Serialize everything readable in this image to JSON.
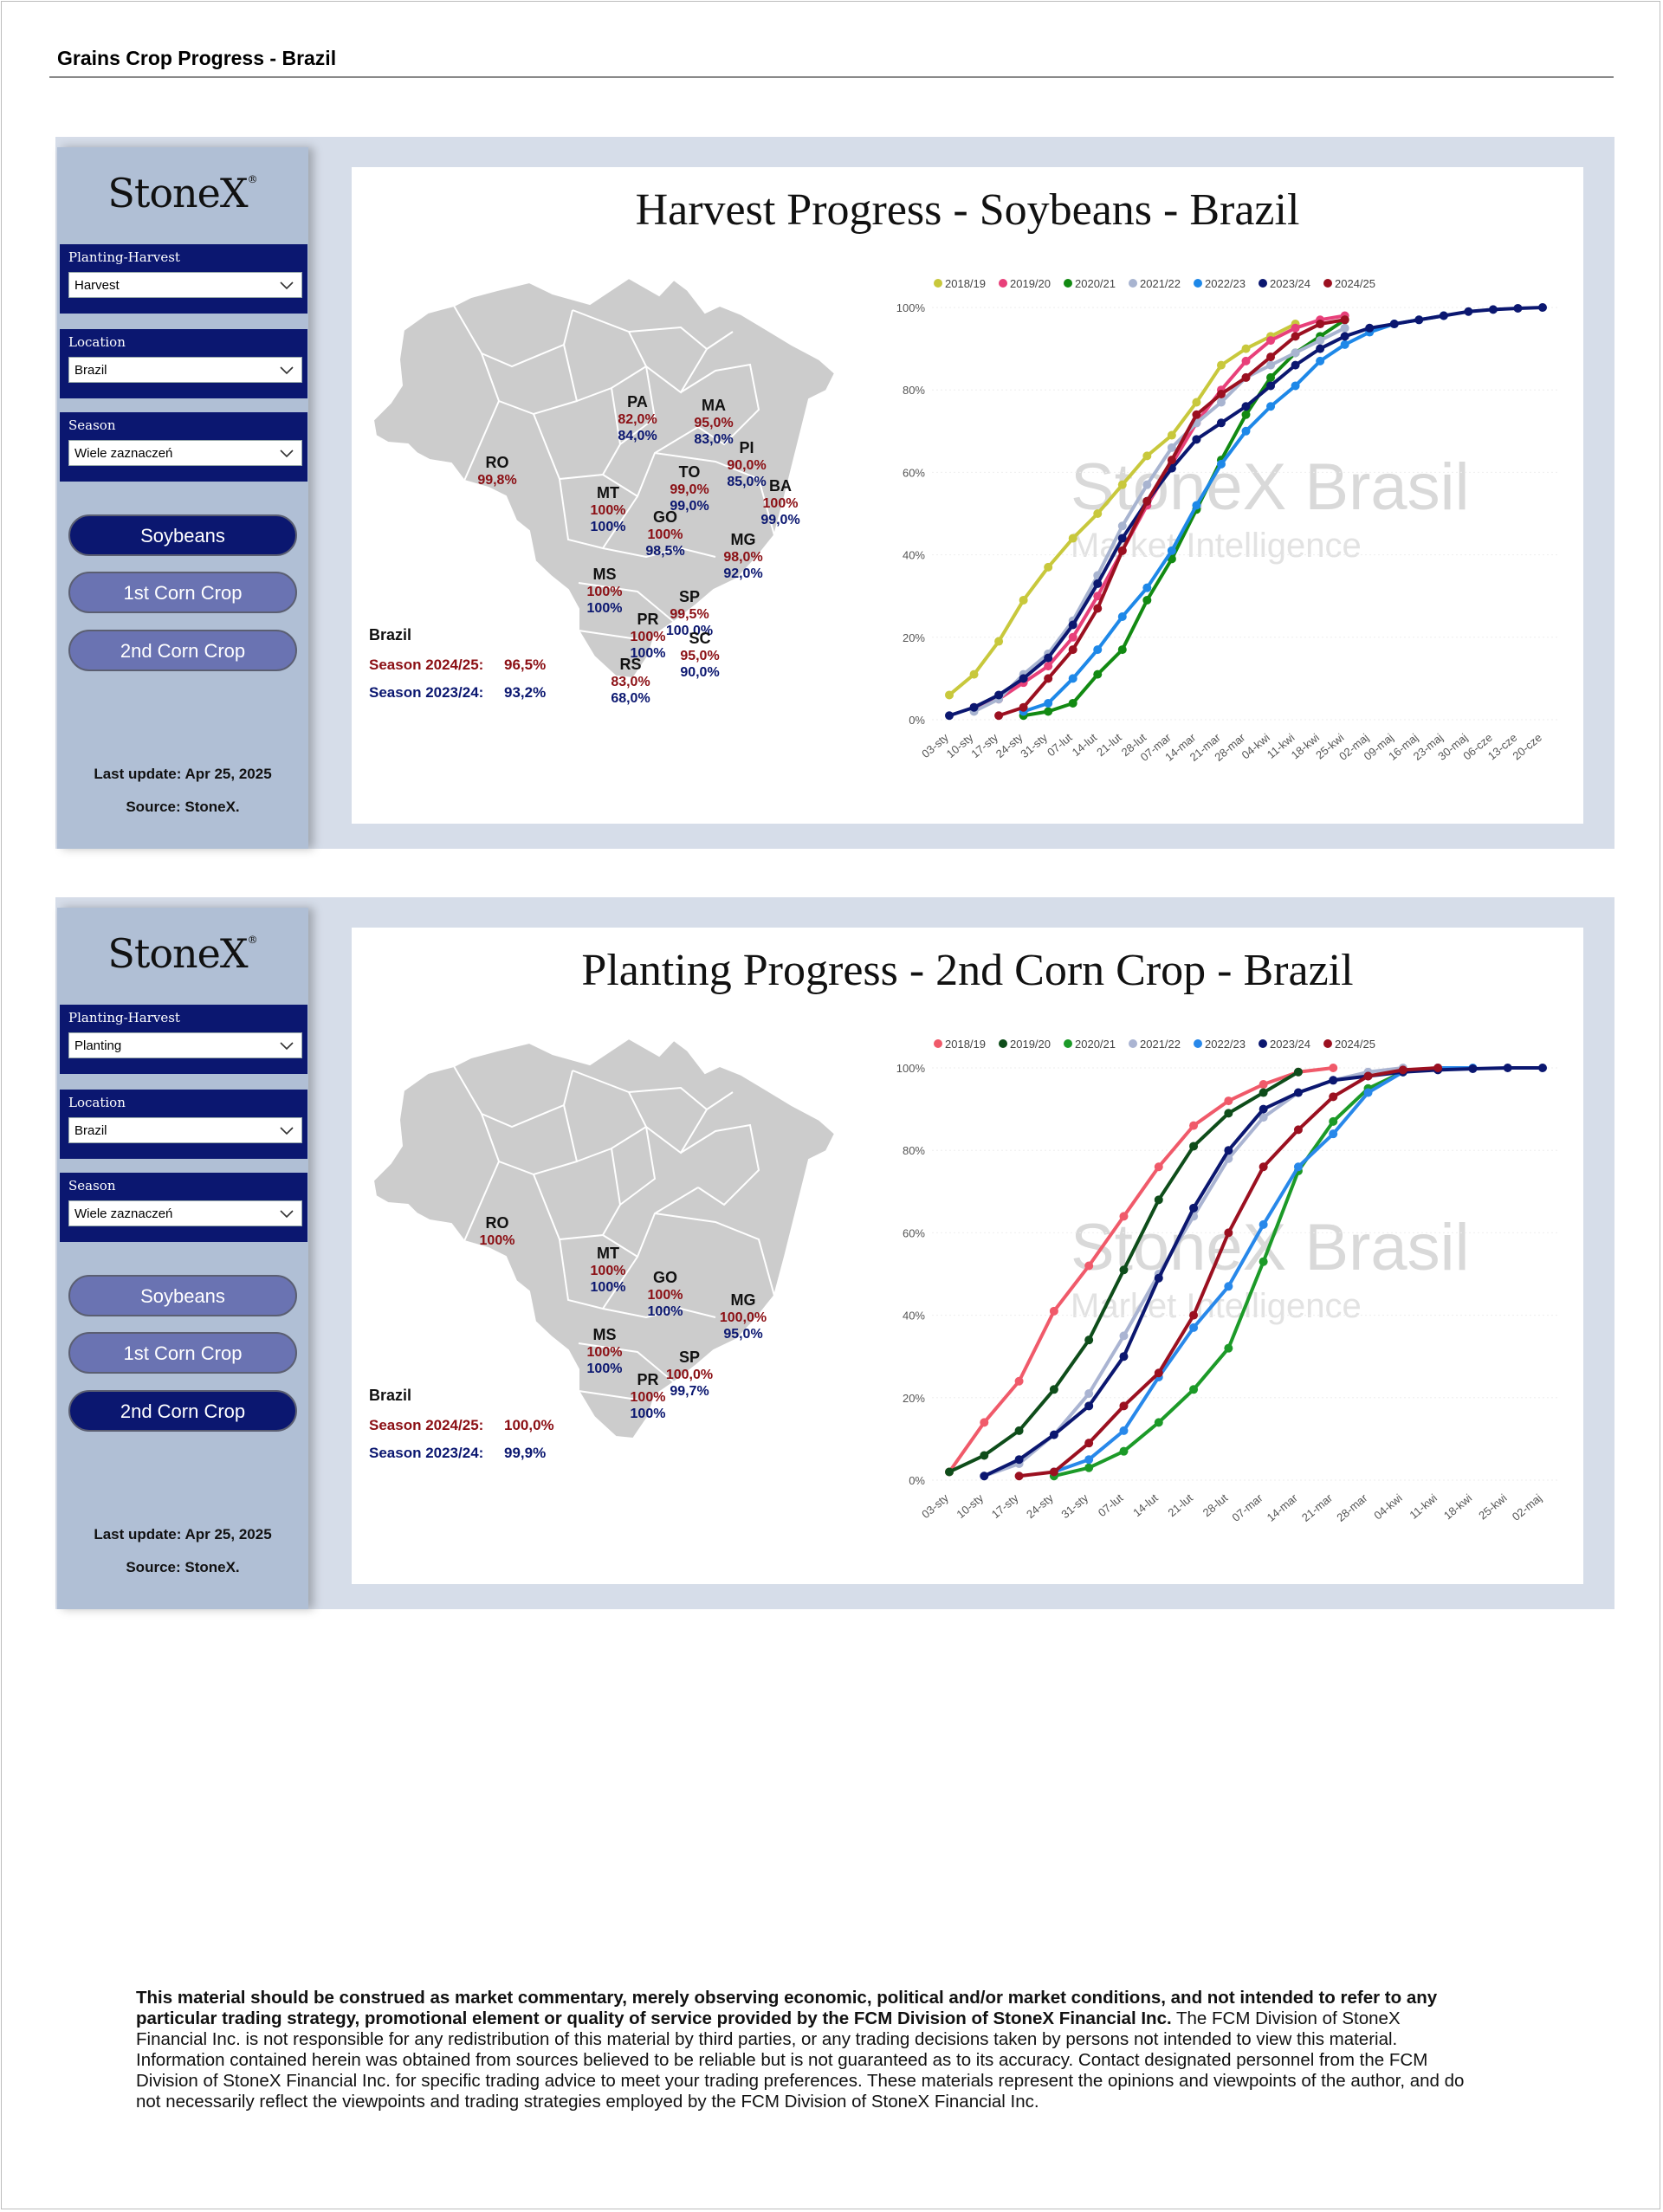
{
  "page_title": "Grains Crop Progress - Brazil",
  "logo": "StoneX",
  "brand_watermark": "StoneX Brasil",
  "brand_watermark_sub": "Market Intelligence",
  "panels": [
    {
      "slicers": [
        {
          "label": "Planting-Harvest",
          "value": "Harvest"
        },
        {
          "label": "Location",
          "value": "Brazil"
        },
        {
          "label": "Season",
          "value": "Wiele zaznaczeń"
        }
      ],
      "buttons": [
        {
          "label": "Soybeans",
          "active": true
        },
        {
          "label": "1st Corn Crop",
          "active": false
        },
        {
          "label": "2nd Corn Crop",
          "active": false
        }
      ],
      "last_update": "Last update: Apr 25, 2025",
      "source": "Source: StoneX.",
      "brazil_label": "Brazil",
      "season_current_label": "Season 2024/25:",
      "season_current_value": "96,5%",
      "season_prev_label": "Season 2023/24:",
      "season_prev_value": "93,2%",
      "states": [
        {
          "code": "PA",
          "cur": "82,0%",
          "prev": "84,0%"
        },
        {
          "code": "MA",
          "cur": "95,0%",
          "prev": "83,0%"
        },
        {
          "code": "PI",
          "cur": "90,0%",
          "prev": "85,0%"
        },
        {
          "code": "RO",
          "cur": "99,8%",
          "prev": ""
        },
        {
          "code": "TO",
          "cur": "99,0%",
          "prev": "99,0%"
        },
        {
          "code": "BA",
          "cur": "100%",
          "prev": "99,0%"
        },
        {
          "code": "MT",
          "cur": "100%",
          "prev": "100%"
        },
        {
          "code": "GO",
          "cur": "100%",
          "prev": "98,5%"
        },
        {
          "code": "MG",
          "cur": "98,0%",
          "prev": "92,0%"
        },
        {
          "code": "MS",
          "cur": "100%",
          "prev": "100%"
        },
        {
          "code": "SP",
          "cur": "99,5%",
          "prev": "100,0%"
        },
        {
          "code": "PR",
          "cur": "100%",
          "prev": "100%"
        },
        {
          "code": "SC",
          "cur": "95,0%",
          "prev": "90,0%"
        },
        {
          "code": "RS",
          "cur": "83,0%",
          "prev": "68,0%"
        }
      ]
    },
    {
      "slicers": [
        {
          "label": "Planting-Harvest",
          "value": "Planting"
        },
        {
          "label": "Location",
          "value": "Brazil"
        },
        {
          "label": "Season",
          "value": "Wiele zaznaczeń"
        }
      ],
      "buttons": [
        {
          "label": "Soybeans",
          "active": false
        },
        {
          "label": "1st Corn Crop",
          "active": false
        },
        {
          "label": "2nd Corn Crop",
          "active": true
        }
      ],
      "last_update": "Last update: Apr 25, 2025",
      "source": "Source: StoneX.",
      "brazil_label": "Brazil",
      "season_current_label": "Season 2024/25:",
      "season_current_value": "100,0%",
      "season_prev_label": "Season 2023/24:",
      "season_prev_value": "99,9%",
      "states": [
        {
          "code": "RO",
          "cur": "100%",
          "prev": ""
        },
        {
          "code": "MT",
          "cur": "100%",
          "prev": "100%"
        },
        {
          "code": "GO",
          "cur": "100%",
          "prev": "100%"
        },
        {
          "code": "MG",
          "cur": "100,0%",
          "prev": "95,0%"
        },
        {
          "code": "MS",
          "cur": "100%",
          "prev": "100%"
        },
        {
          "code": "SP",
          "cur": "100,0%",
          "prev": "99,7%"
        },
        {
          "code": "PR",
          "cur": "100%",
          "prev": "100%"
        }
      ]
    }
  ],
  "chart_data": [
    {
      "type": "line",
      "title": "Harvest Progress - Soybeans - Brazil",
      "xlabel": "",
      "ylabel": "",
      "yticks": [
        "0%",
        "20%",
        "40%",
        "60%",
        "80%",
        "100%"
      ],
      "ylim": [
        0,
        100
      ],
      "categories": [
        "03-sty",
        "10-sty",
        "17-sty",
        "24-sty",
        "31-sty",
        "07-lut",
        "14-lut",
        "21-lut",
        "28-lut",
        "07-mar",
        "14-mar",
        "21-mar",
        "28-mar",
        "04-kwi",
        "11-kwi",
        "18-kwi",
        "25-kwi",
        "02-maj",
        "09-maj",
        "16-maj",
        "23-maj",
        "30-maj",
        "06-cze",
        "13-cze",
        "20-cze"
      ],
      "legend_position": "top",
      "series": [
        {
          "name": "2018/19",
          "color": "#c8c83c",
          "values": [
            6,
            11,
            19,
            29,
            37,
            44,
            50,
            57,
            64,
            69,
            77,
            86,
            90,
            93,
            96,
            null,
            null,
            null,
            null,
            null,
            null,
            null,
            null,
            null,
            null
          ]
        },
        {
          "name": "2019/20",
          "color": "#e8407a",
          "values": [
            null,
            3,
            5,
            9,
            13,
            20,
            30,
            41,
            52,
            62,
            72,
            80,
            87,
            92,
            95,
            97,
            98,
            null,
            null,
            null,
            null,
            null,
            null,
            null,
            null
          ]
        },
        {
          "name": "2020/21",
          "color": "#128a12",
          "values": [
            null,
            null,
            null,
            1,
            2,
            4,
            11,
            17,
            29,
            39,
            51,
            63,
            74,
            83,
            89,
            93,
            97,
            null,
            null,
            null,
            null,
            null,
            null,
            null,
            null
          ]
        },
        {
          "name": "2021/22",
          "color": "#a8b4d0",
          "values": [
            null,
            2,
            5,
            11,
            16,
            24,
            35,
            47,
            57,
            66,
            72,
            77,
            83,
            86,
            89,
            92,
            95,
            null,
            null,
            null,
            null,
            null,
            null,
            null,
            null
          ]
        },
        {
          "name": "2022/23",
          "color": "#1e88e8",
          "values": [
            null,
            null,
            null,
            2,
            4,
            10,
            17,
            25,
            32,
            41,
            52,
            62,
            70,
            76,
            81,
            87,
            91,
            94,
            96,
            97,
            98,
            null,
            null,
            null,
            null
          ]
        },
        {
          "name": "2023/24",
          "color": "#0b1770",
          "values": [
            1,
            3,
            6,
            10,
            15,
            23,
            33,
            44,
            53,
            61,
            68,
            72,
            76,
            81,
            86,
            90,
            93,
            95,
            96,
            97,
            98,
            99,
            99.5,
            99.8,
            100
          ]
        },
        {
          "name": "2024/25",
          "color": "#9b1020",
          "values": [
            null,
            null,
            1,
            3,
            10,
            17,
            27,
            41,
            53,
            63,
            74,
            79,
            83,
            88,
            93,
            96,
            97,
            null,
            null,
            null,
            null,
            null,
            null,
            null,
            null
          ]
        }
      ]
    },
    {
      "type": "line",
      "title": "Planting Progress - 2nd Corn Crop - Brazil",
      "xlabel": "",
      "ylabel": "",
      "yticks": [
        "0%",
        "20%",
        "40%",
        "60%",
        "80%",
        "100%"
      ],
      "ylim": [
        0,
        100
      ],
      "categories": [
        "03-sty",
        "10-sty",
        "17-sty",
        "24-sty",
        "31-sty",
        "07-lut",
        "14-lut",
        "21-lut",
        "28-lut",
        "07-mar",
        "14-mar",
        "21-mar",
        "28-mar",
        "04-kwi",
        "11-kwi",
        "18-kwi",
        "25-kwi",
        "02-maj"
      ],
      "legend_position": "top",
      "series": [
        {
          "name": "2018/19",
          "color": "#f05a6a",
          "values": [
            2,
            14,
            24,
            41,
            52,
            64,
            76,
            86,
            92,
            96,
            99,
            100,
            null,
            null,
            null,
            null,
            null,
            null
          ]
        },
        {
          "name": "2019/20",
          "color": "#0e4d1a",
          "values": [
            2,
            6,
            12,
            22,
            34,
            51,
            68,
            81,
            89,
            94,
            99,
            null,
            null,
            null,
            null,
            null,
            null,
            null
          ]
        },
        {
          "name": "2020/21",
          "color": "#1c9a28",
          "values": [
            null,
            null,
            null,
            1,
            3,
            7,
            14,
            22,
            32,
            53,
            75,
            87,
            95,
            99,
            null,
            null,
            null,
            null
          ]
        },
        {
          "name": "2021/22",
          "color": "#aab4d2",
          "values": [
            null,
            1,
            4,
            11,
            21,
            35,
            50,
            64,
            78,
            88,
            94,
            97,
            99,
            100,
            null,
            null,
            null,
            null
          ]
        },
        {
          "name": "2022/23",
          "color": "#2888ea",
          "values": [
            null,
            null,
            null,
            2,
            5,
            12,
            25,
            37,
            47,
            62,
            76,
            84,
            94,
            99,
            100,
            101,
            null,
            null
          ]
        },
        {
          "name": "2023/24",
          "color": "#0b1770",
          "values": [
            null,
            1,
            5,
            11,
            18,
            30,
            49,
            66,
            80,
            90,
            94,
            97,
            98,
            99,
            99.5,
            99.8,
            100,
            100
          ]
        },
        {
          "name": "2024/25",
          "color": "#9b1020",
          "values": [
            null,
            null,
            1,
            2,
            9,
            18,
            26,
            40,
            60,
            76,
            85,
            93,
            98,
            99.5,
            100,
            null,
            null,
            null
          ]
        }
      ]
    }
  ]
}
